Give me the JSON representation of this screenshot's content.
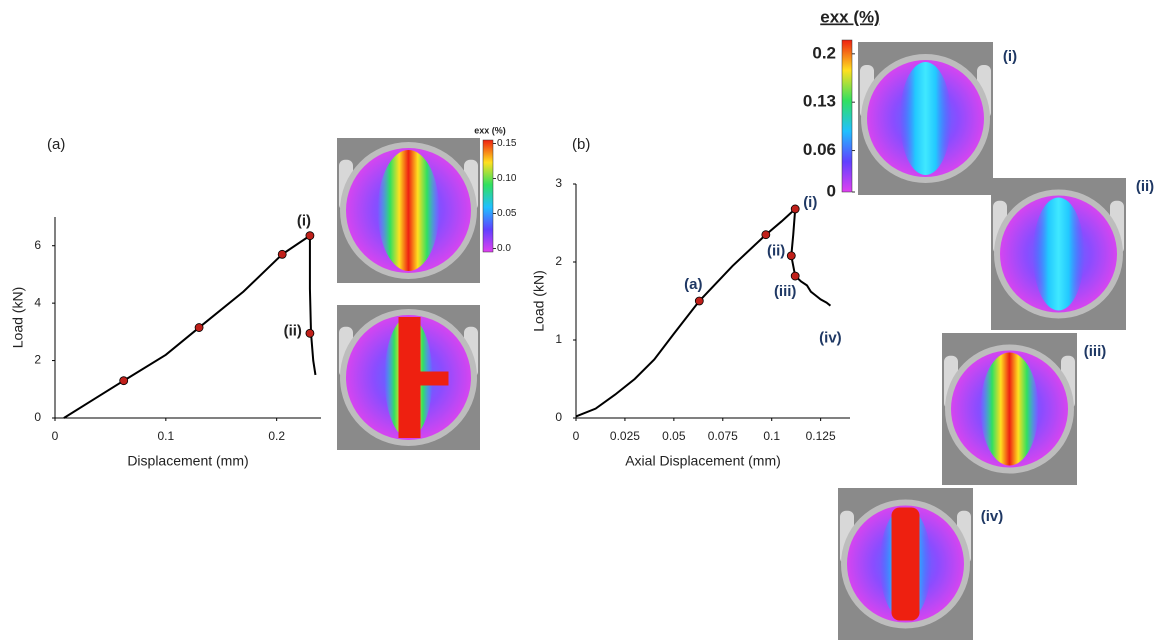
{
  "chart_data": [
    {
      "type": "line",
      "panel_label": "(a)",
      "xlabel": "Displacement (mm)",
      "ylabel": "Load (kN)",
      "xlim": [
        0,
        0.24
      ],
      "ylim": [
        0,
        7
      ],
      "xticks": [
        0,
        0.1,
        0.2
      ],
      "yticks": [
        0,
        2,
        4,
        6
      ],
      "series": [
        {
          "color": "#000000",
          "x": [
            0.008,
            0.035,
            0.062,
            0.1,
            0.13,
            0.17,
            0.205,
            0.23,
            0.23,
            0.231,
            0.233,
            0.235
          ],
          "y": [
            0,
            0.65,
            1.3,
            2.2,
            3.15,
            4.4,
            5.7,
            6.35,
            4.5,
            2.95,
            2.0,
            1.5
          ]
        }
      ],
      "markers": {
        "color": "#c0201a",
        "x": [
          0.062,
          0.13,
          0.205,
          0.23,
          0.23
        ],
        "y": [
          1.3,
          3.15,
          5.7,
          6.35,
          2.95
        ],
        "labels": [
          null,
          null,
          null,
          "(i)",
          "(ii)"
        ]
      },
      "colorbar": {
        "title": "exx (%)",
        "lim": [
          -0.005,
          0.155
        ],
        "ticks": [
          0.15,
          {
            "value": 0.1,
            "label": "0.10"
          },
          0.05,
          {
            "value": 0,
            "label": "0.0"
          }
        ]
      }
    },
    {
      "type": "line",
      "panel_label": "(b)",
      "xlabel": "Axial Displacement  (mm)",
      "ylabel": "Load (kN)",
      "xlim": [
        0,
        0.14
      ],
      "ylim": [
        0,
        3
      ],
      "xticks": [
        0,
        0.025,
        0.05,
        0.075,
        0.1,
        0.125
      ],
      "yticks": [
        0,
        1,
        2,
        3
      ],
      "series": [
        {
          "color": "#000000",
          "x": [
            0,
            0.01,
            0.02,
            0.03,
            0.04,
            0.05,
            0.063,
            0.08,
            0.097,
            0.105,
            0.112,
            0.111,
            0.11,
            0.112,
            0.115,
            0.118,
            0.12,
            0.122,
            0.125,
            0.128,
            0.13
          ],
          "y": [
            0.02,
            0.12,
            0.3,
            0.5,
            0.75,
            1.08,
            1.5,
            1.95,
            2.35,
            2.52,
            2.68,
            2.35,
            2.08,
            1.82,
            1.75,
            1.7,
            1.62,
            1.58,
            1.52,
            1.48,
            1.44
          ]
        }
      ],
      "markers": {
        "color": "#c0201a",
        "x": [
          0.063,
          0.097,
          0.112,
          0.11,
          0.112
        ],
        "y": [
          1.5,
          2.35,
          2.68,
          2.08,
          1.82
        ],
        "labels": [
          "(a)",
          null,
          "(i)",
          "(ii)",
          "(iii)"
        ]
      },
      "annotations": [
        {
          "text": "(iv)",
          "x": 0.13,
          "y": 1.2
        }
      ],
      "colorbar": {
        "title": "exx (%)",
        "lim": [
          0,
          0.22
        ],
        "ticks": [
          0.2,
          0.13,
          0.06,
          0
        ]
      },
      "images": [
        "(i)",
        "(ii)",
        "(iii)",
        "(iv)"
      ]
    }
  ]
}
